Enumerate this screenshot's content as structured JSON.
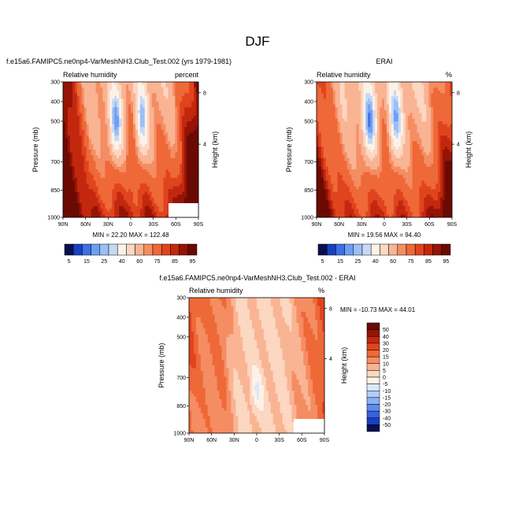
{
  "main_title": "DJF",
  "colors": {
    "rh": [
      "#08104f",
      "#1640c2",
      "#3d6fe6",
      "#6f9ff2",
      "#9bbff6",
      "#c5d9f7",
      "#fdf2e9",
      "#fcd7c1",
      "#f9b494",
      "#f58d63",
      "#ef6838",
      "#e0441d",
      "#c3280f",
      "#951405",
      "#6a0a03"
    ],
    "diff": [
      "#08104f",
      "#1640c2",
      "#3562e0",
      "#5c8cee",
      "#8ab0f4",
      "#b3ccf6",
      "#dbe8fb",
      "#fdf2e9",
      "#fcd7c1",
      "#f9b494",
      "#f58d63",
      "#ef6838",
      "#e0441d",
      "#c3280f",
      "#951405",
      "#6a0a03"
    ]
  },
  "chart_data": [
    {
      "type": "heatmap",
      "name": "model",
      "title": "f.e15a6.FAMIPC5.ne0np4-VarMeshNH3.Club_Test.002 (yrs 1979-1981)",
      "left_label": "Relative humidity",
      "right_label": "percent",
      "ylabel": "Pressure (mb)",
      "y2label": "Height (km)",
      "x_ticks": [
        "90N",
        "60N",
        "30N",
        "0",
        "30S",
        "60S",
        "90S"
      ],
      "y_ticks": [
        "300",
        "400",
        "500",
        "700",
        "850",
        "1000"
      ],
      "y2_ticks": [
        "8",
        "4"
      ],
      "min_max_text": "MIN = 22.20  MAX = 122.48",
      "dry": [
        [
          20,
          -0.7
        ],
        [
          5,
          0.7
        ]
      ],
      "base": 55,
      "edge_boost": 38
    },
    {
      "type": "heatmap",
      "name": "erai",
      "title": "ERAI",
      "left_label": "Relative humidity",
      "right_label": "%",
      "ylabel": "Pressure (mb)",
      "y2label": "Height (km)",
      "x_ticks": [
        "90N",
        "60N",
        "30N",
        "0",
        "30S",
        "60S",
        "90S"
      ],
      "y_ticks": [
        "300",
        "400",
        "500",
        "700",
        "850",
        "1000"
      ],
      "y2_ticks": [
        "8",
        "4"
      ],
      "min_max_text": "MIN = 19.56  MAX = 94.40",
      "dry": [
        [
          20,
          -0.7
        ],
        [
          5,
          0.7
        ]
      ],
      "base": 52,
      "edge_boost": 26
    },
    {
      "type": "heatmap",
      "name": "difference",
      "title": "f.e15a6.FAMIPC5.ne0np4-VarMeshNH3.Club_Test.002 - ERAI",
      "left_label": "Relative humidity",
      "right_label": "%",
      "ylabel": "Pressure (mb)",
      "y2label": "Height (km)",
      "x_ticks": [
        "90N",
        "60N",
        "30N",
        "0",
        "30S",
        "60S",
        "90S"
      ],
      "y_ticks": [
        "300",
        "400",
        "500",
        "700",
        "850",
        "1000"
      ],
      "y2_ticks": [
        "8",
        "4"
      ],
      "min_max_text": "MIN = -10.73  MAX =  44.01"
    }
  ],
  "colorbar_rh": {
    "levels": [
      "5",
      "15",
      "25",
      "40",
      "60",
      "75",
      "85",
      "95"
    ],
    "thresholds": [
      5,
      10,
      15,
      20,
      25,
      30,
      40,
      50,
      60,
      65,
      75,
      80,
      85,
      90,
      95
    ]
  },
  "colorbar_diff": {
    "levels": [
      "50",
      "40",
      "30",
      "20",
      "15",
      "10",
      "5",
      "0",
      "-5",
      "-10",
      "-15",
      "-20",
      "-30",
      "-40",
      "-50"
    ],
    "thresholds": [
      -50,
      -40,
      -30,
      -20,
      -15,
      -10,
      -5,
      0,
      5,
      10,
      15,
      20,
      30,
      40,
      50
    ]
  }
}
